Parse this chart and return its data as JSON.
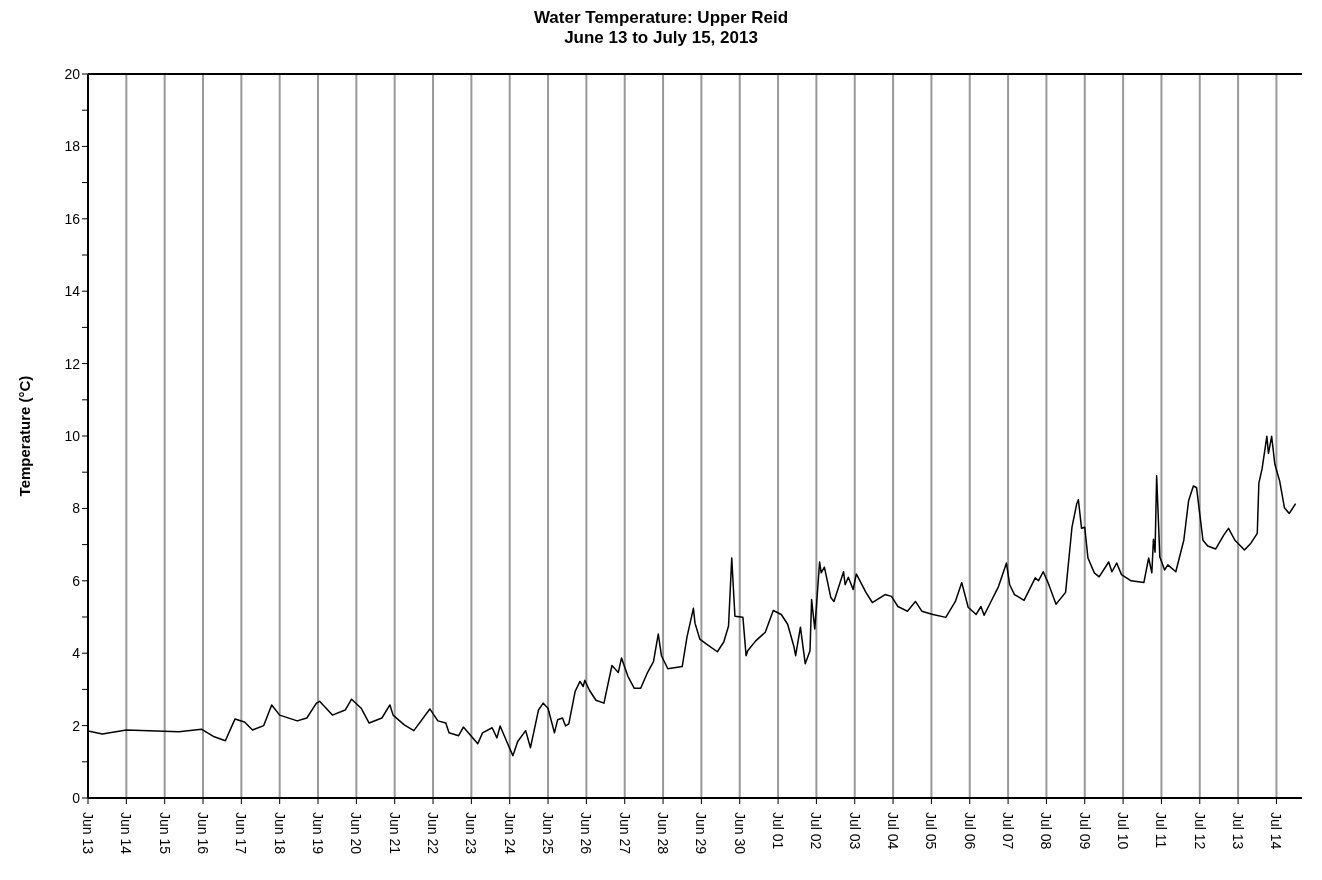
{
  "chart_data": {
    "type": "line",
    "title": "Water Temperature: Upper Reid",
    "subtitle": "June 13 to July 15, 2013",
    "ylabel": "Temperature (°C)",
    "x": [
      "2013-06-13T00:00",
      "2013-06-13T09:00",
      "2013-06-14T00:00",
      "2013-06-15T09:00",
      "2013-06-15T23:00",
      "2013-06-16T07:00",
      "2013-06-16T14:00",
      "2013-06-16T20:00",
      "2013-06-17T02:00",
      "2013-06-17T07:00",
      "2013-06-17T14:00",
      "2013-06-17T19:00",
      "2013-06-18T00:00",
      "2013-06-18T11:00",
      "2013-06-18T17:00",
      "2013-06-18T23:00",
      "2013-06-19T01:00",
      "2013-06-19T09:00",
      "2013-06-19T17:00",
      "2013-06-19T21:00",
      "2013-06-20T03:00",
      "2013-06-20T08:00",
      "2013-06-20T16:00",
      "2013-06-20T21:00",
      "2013-06-20T23:00",
      "2013-06-21T06:00",
      "2013-06-21T12:00",
      "2013-06-21T22:00",
      "2013-06-22T03:00",
      "2013-06-22T08:00",
      "2013-06-22T10:00",
      "2013-06-22T16:00",
      "2013-06-22T19:00",
      "2013-06-23T04:00",
      "2013-06-23T07:00",
      "2013-06-23T13:00",
      "2013-06-23T16:00",
      "2013-06-23T18:00",
      "2013-06-23T23:00",
      "2013-06-24T02:00",
      "2013-06-24T05:00",
      "2013-06-24T10:00",
      "2013-06-24T13:00",
      "2013-06-24T18:00",
      "2013-06-24T21:00",
      "2013-06-25T00:00",
      "2013-06-25T04:00",
      "2013-06-25T06:00",
      "2013-06-25T09:00",
      "2013-06-25T11:00",
      "2013-06-25T13:00",
      "2013-06-25T17:00",
      "2013-06-25T20:00",
      "2013-06-25T22:00",
      "2013-06-25T23:00",
      "2013-06-26T02:00",
      "2013-06-26T06:00",
      "2013-06-26T11:00",
      "2013-06-26T16:00",
      "2013-06-26T20:00",
      "2013-06-26T22:00",
      "2013-06-27T02:00",
      "2013-06-27T06:00",
      "2013-06-27T10:00",
      "2013-06-27T14:00",
      "2013-06-27T18:00",
      "2013-06-27T21:00",
      "2013-06-27T23:00",
      "2013-06-28T03:00",
      "2013-06-28T12:00",
      "2013-06-28T15:00",
      "2013-06-28T19:00",
      "2013-06-28T20:00",
      "2013-06-28T23:00",
      "2013-06-29T03:00",
      "2013-06-29T10:00",
      "2013-06-29T14:00",
      "2013-06-29T17:00",
      "2013-06-29T19:00",
      "2013-06-29T21:00",
      "2013-06-30T02:00",
      "2013-06-30T04:00",
      "2013-06-30T05:00",
      "2013-06-30T10:00",
      "2013-06-30T16:00",
      "2013-06-30T21:00",
      "2013-07-01T02:00",
      "2013-07-01T06:00",
      "2013-07-01T10:00",
      "2013-07-01T11:00",
      "2013-07-01T14:00",
      "2013-07-01T17:00",
      "2013-07-01T20:00",
      "2013-07-01T21:00",
      "2013-07-01T23:00",
      "2013-07-02T02:00",
      "2013-07-02T03:00",
      "2013-07-02T05:00",
      "2013-07-02T09:00",
      "2013-07-02T11:00",
      "2013-07-02T17:00",
      "2013-07-02T18:00",
      "2013-07-02T20:00",
      "2013-07-02T23:00",
      "2013-07-03T01:00",
      "2013-07-03T07:00",
      "2013-07-03T11:00",
      "2013-07-03T19:00",
      "2013-07-03T23:00",
      "2013-07-04T03:00",
      "2013-07-04T09:00",
      "2013-07-04T14:00",
      "2013-07-04T18:00",
      "2013-07-05T01:00",
      "2013-07-05T09:00",
      "2013-07-05T15:00",
      "2013-07-05T19:00",
      "2013-07-05T23:00",
      "2013-07-06T04:00",
      "2013-07-06T07:00",
      "2013-07-06T09:00",
      "2013-07-06T13:00",
      "2013-07-06T18:00",
      "2013-07-06T23:00",
      "2013-07-07T01:00",
      "2013-07-07T04:00",
      "2013-07-07T10:00",
      "2013-07-07T17:00",
      "2013-07-07T19:00",
      "2013-07-07T22:00",
      "2013-07-08T01:00",
      "2013-07-08T06:00",
      "2013-07-08T12:00",
      "2013-07-08T16:00",
      "2013-07-08T19:00",
      "2013-07-08T20:00",
      "2013-07-08T22:00",
      "2013-07-09T00:00",
      "2013-07-09T02:00",
      "2013-07-09T06:00",
      "2013-07-09T09:00",
      "2013-07-09T15:00",
      "2013-07-09T17:00",
      "2013-07-09T20:00",
      "2013-07-09T23:00",
      "2013-07-10T05:00",
      "2013-07-10T13:00",
      "2013-07-10T16:00",
      "2013-07-10T18:00",
      "2013-07-10T19:00",
      "2013-07-10T20:00",
      "2013-07-10T21:00",
      "2013-07-10T23:00",
      "2013-07-11T02:00",
      "2013-07-11T04:00",
      "2013-07-11T09:00",
      "2013-07-11T14:00",
      "2013-07-11T17:00",
      "2013-07-11T20:00",
      "2013-07-11T22:00",
      "2013-07-12T02:00",
      "2013-07-12T05:00",
      "2013-07-12T10:00",
      "2013-07-12T15:00",
      "2013-07-12T18:00",
      "2013-07-12T22:00",
      "2013-07-13T04:00",
      "2013-07-13T08:00",
      "2013-07-13T12:00",
      "2013-07-13T13:00",
      "2013-07-13T15:00",
      "2013-07-13T18:00",
      "2013-07-13T19:00",
      "2013-07-13T21:00",
      "2013-07-13T23:00",
      "2013-07-14T02:00",
      "2013-07-14T05:00",
      "2013-07-14T08:00",
      "2013-07-14T12:00"
    ],
    "series": [
      {
        "color": "#000000",
        "values": [
          1.85,
          1.77,
          1.88,
          1.83,
          1.9,
          1.69,
          1.58,
          2.18,
          2.1,
          1.88,
          2.0,
          2.57,
          2.29,
          2.13,
          2.21,
          2.62,
          2.67,
          2.29,
          2.43,
          2.73,
          2.48,
          2.07,
          2.21,
          2.57,
          2.29,
          2.02,
          1.86,
          2.46,
          2.13,
          2.07,
          1.8,
          1.72,
          1.96,
          1.5,
          1.8,
          1.94,
          1.66,
          1.99,
          1.47,
          1.17,
          1.56,
          1.86,
          1.39,
          2.43,
          2.62,
          2.48,
          1.8,
          2.16,
          2.21,
          1.99,
          2.05,
          2.95,
          3.22,
          3.08,
          3.25,
          2.97,
          2.7,
          2.62,
          3.66,
          3.47,
          3.87,
          3.36,
          3.03,
          3.03,
          3.44,
          3.77,
          4.53,
          3.93,
          3.57,
          3.63,
          4.45,
          5.24,
          4.83,
          4.39,
          4.26,
          4.04,
          4.31,
          4.75,
          6.63,
          5.02,
          4.99,
          3.93,
          4.07,
          4.34,
          4.58,
          5.18,
          5.07,
          4.8,
          4.17,
          3.93,
          4.72,
          3.71,
          4.07,
          5.48,
          4.67,
          6.52,
          6.22,
          6.38,
          5.54,
          5.43,
          6.25,
          5.89,
          6.1,
          5.76,
          6.19,
          5.68,
          5.4,
          5.62,
          5.57,
          5.29,
          5.16,
          5.43,
          5.16,
          5.07,
          4.99,
          5.43,
          5.95,
          5.27,
          5.07,
          5.29,
          5.05,
          5.4,
          5.84,
          6.49,
          5.89,
          5.62,
          5.46,
          6.08,
          6.0,
          6.25,
          5.95,
          5.35,
          5.68,
          7.48,
          8.13,
          8.24,
          7.45,
          7.48,
          6.63,
          6.22,
          6.11,
          6.52,
          6.25,
          6.49,
          6.17,
          6.0,
          5.95,
          6.63,
          6.22,
          7.15,
          6.79,
          8.9,
          6.66,
          6.3,
          6.44,
          6.25,
          7.12,
          8.21,
          8.62,
          8.57,
          7.12,
          6.96,
          6.88,
          7.26,
          7.45,
          7.12,
          6.85,
          7.04,
          7.31,
          8.7,
          9.09,
          9.99,
          9.52,
          9.99,
          9.22,
          8.76,
          8.02,
          7.86,
          8.13
        ]
      }
    ],
    "xlim": [
      "2013-06-13T00:00",
      "2013-07-14T16:00"
    ],
    "xticks": [
      {
        "value": "2013-06-13",
        "label": "Jun 13"
      },
      {
        "value": "2013-06-14",
        "label": "Jun 14"
      },
      {
        "value": "2013-06-15",
        "label": "Jun 15"
      },
      {
        "value": "2013-06-16",
        "label": "Jun 16"
      },
      {
        "value": "2013-06-17",
        "label": "Jun 17"
      },
      {
        "value": "2013-06-18",
        "label": "Jun 18"
      },
      {
        "value": "2013-06-19",
        "label": "Jun 19"
      },
      {
        "value": "2013-06-20",
        "label": "Jun 20"
      },
      {
        "value": "2013-06-21",
        "label": "Jun 21"
      },
      {
        "value": "2013-06-22",
        "label": "Jun 22"
      },
      {
        "value": "2013-06-23",
        "label": "Jun 23"
      },
      {
        "value": "2013-06-24",
        "label": "Jun 24"
      },
      {
        "value": "2013-06-25",
        "label": "Jun 25"
      },
      {
        "value": "2013-06-26",
        "label": "Jun 26"
      },
      {
        "value": "2013-06-27",
        "label": "Jun 27"
      },
      {
        "value": "2013-06-28",
        "label": "Jun 28"
      },
      {
        "value": "2013-06-29",
        "label": "Jun 29"
      },
      {
        "value": "2013-06-30",
        "label": "Jun 30"
      },
      {
        "value": "2013-07-01",
        "label": "Jul 01"
      },
      {
        "value": "2013-07-02",
        "label": "Jul 02"
      },
      {
        "value": "2013-07-03",
        "label": "Jul 03"
      },
      {
        "value": "2013-07-04",
        "label": "Jul 04"
      },
      {
        "value": "2013-07-05",
        "label": "Jul 05"
      },
      {
        "value": "2013-07-06",
        "label": "Jul 06"
      },
      {
        "value": "2013-07-07",
        "label": "Jul 07"
      },
      {
        "value": "2013-07-08",
        "label": "Jul 08"
      },
      {
        "value": "2013-07-09",
        "label": "Jul 09"
      },
      {
        "value": "2013-07-10",
        "label": "Jul 10"
      },
      {
        "value": "2013-07-11",
        "label": "Jul 11"
      },
      {
        "value": "2013-07-12",
        "label": "Jul 12"
      },
      {
        "value": "2013-07-13",
        "label": "Jul 13"
      },
      {
        "value": "2013-07-14",
        "label": "Jul 14"
      }
    ],
    "ylim": [
      0,
      20
    ],
    "yticks": [
      0,
      {
        "value": 1,
        "label": null
      },
      2,
      {
        "value": 3,
        "label": null
      },
      4,
      {
        "value": 5,
        "label": null
      },
      6,
      {
        "value": 7,
        "label": null
      },
      8,
      {
        "value": 9,
        "label": null
      },
      10,
      {
        "value": 11,
        "label": null
      },
      12,
      {
        "value": 13,
        "label": null
      },
      14,
      {
        "value": 15,
        "label": null
      },
      16,
      {
        "value": 17,
        "label": null
      },
      18,
      {
        "value": 19,
        "label": null
      },
      20
    ],
    "grid": true,
    "marker": "none",
    "line_style": "solid"
  }
}
